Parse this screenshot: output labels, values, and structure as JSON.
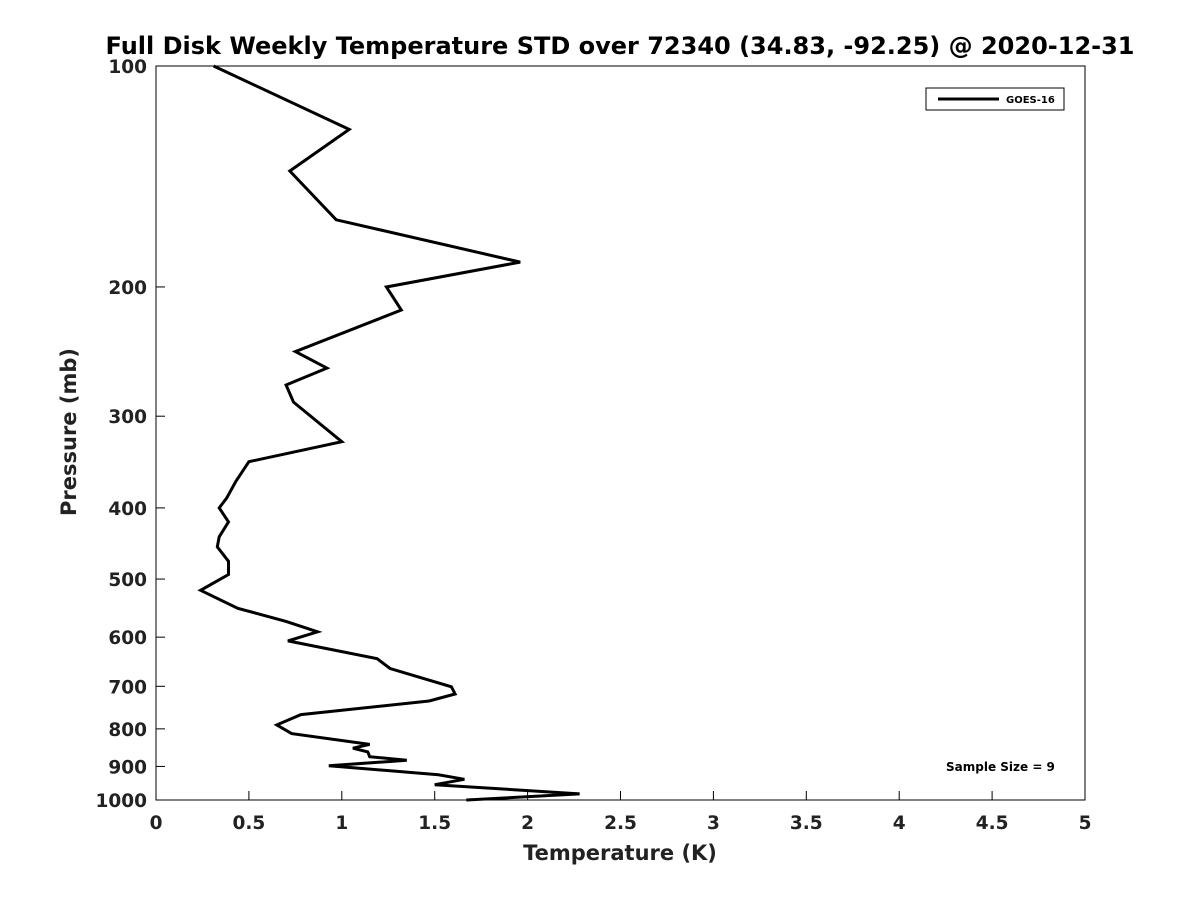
{
  "chart_data": {
    "type": "line",
    "title": "Full Disk Weekly Temperature STD over 72340 (34.83, -92.25) @ 2020-12-31",
    "xlabel": "Temperature (K)",
    "ylabel": "Pressure (mb)",
    "xlim": [
      0,
      5
    ],
    "ylim": [
      100,
      1000
    ],
    "yscale": "log",
    "y_reversed": true,
    "x_ticks": [
      0,
      0.5,
      1,
      1.5,
      2,
      2.5,
      3,
      3.5,
      4,
      4.5,
      5
    ],
    "x_tick_labels": [
      "0",
      "0.5",
      "1",
      "1.5",
      "2",
      "2.5",
      "3",
      "3.5",
      "4",
      "4.5",
      "5"
    ],
    "y_ticks": [
      100,
      200,
      300,
      400,
      500,
      600,
      700,
      800,
      900,
      1000
    ],
    "y_tick_labels": [
      "100",
      "200",
      "300",
      "400",
      "500",
      "600",
      "700",
      "800",
      "900",
      "1000"
    ],
    "grid": false,
    "legend_position": "top-right",
    "annotation": "Sample Size = 9",
    "series": [
      {
        "name": "GOES-16",
        "color": "#000000",
        "x": [
          0.31,
          1.04,
          0.72,
          0.97,
          1.96,
          1.24,
          1.32,
          0.75,
          0.92,
          0.7,
          0.74,
          1.0,
          0.5,
          0.43,
          0.38,
          0.34,
          0.39,
          0.34,
          0.33,
          0.39,
          0.39,
          0.24,
          0.44,
          0.7,
          0.87,
          0.71,
          1.19,
          1.26,
          1.59,
          1.61,
          1.47,
          0.78,
          0.65,
          0.73,
          1.15,
          1.06,
          1.14,
          1.15,
          1.35,
          0.93,
          1.52,
          1.66,
          1.5,
          2.28,
          1.67
        ],
        "y": [
          100,
          122,
          139,
          162,
          185,
          200,
          215,
          245,
          258,
          272,
          287,
          325,
          346,
          368,
          388,
          400,
          418,
          438,
          452,
          473,
          493,
          518,
          548,
          571,
          590,
          607,
          642,
          662,
          701,
          717,
          733,
          765,
          790,
          812,
          840,
          850,
          860,
          873,
          883,
          898,
          924,
          937,
          953,
          981,
          1000
        ]
      }
    ]
  }
}
